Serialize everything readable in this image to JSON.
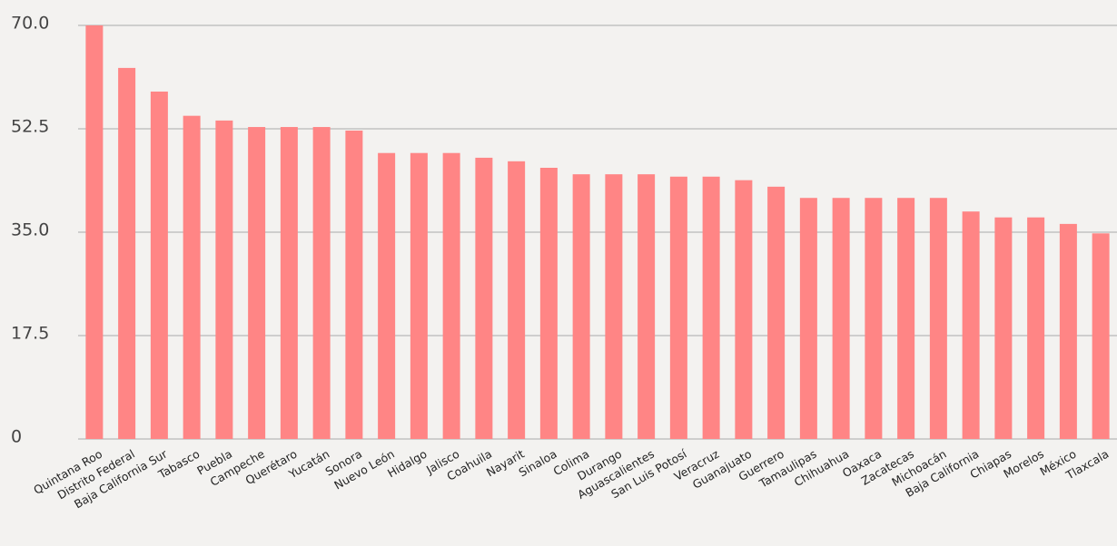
{
  "chart_data": {
    "type": "bar",
    "categories": [
      "Quintana Roo",
      "Distrito Federal",
      "Baja California Sur",
      "Tabasco",
      "Puebla",
      "Campeche",
      "Querétaro",
      "Yucatán",
      "Sonora",
      "Nuevo León",
      "Hidalgo",
      "Jalisco",
      "Coahuila",
      "Nayarit",
      "Sinaloa",
      "Colima",
      "Durango",
      "Aguascalientes",
      "San Luis Potosí",
      "Veracruz",
      "Guanajuato",
      "Guerrero",
      "Tamaulipas",
      "Chihuahua",
      "Oaxaca",
      "Zacatecas",
      "Michoacán",
      "Baja California",
      "Chiapas",
      "Morelos",
      "México",
      "Tlaxcala"
    ],
    "values": [
      70,
      62.8,
      58.8,
      54.7,
      53.9,
      52.8,
      52.8,
      52.8,
      52.2,
      48.4,
      48.4,
      48.4,
      47.6,
      47.0,
      45.9,
      44.8,
      44.8,
      44.8,
      44.4,
      44.4,
      43.8,
      42.7,
      40.8,
      40.8,
      40.8,
      40.8,
      40.8,
      38.5,
      37.5,
      37.5,
      36.4,
      34.8
    ],
    "color": "#ff8585",
    "ylim": [
      0,
      70
    ],
    "yticks": [
      0,
      17.5,
      {
        "value": 35,
        "label": "35.0"
      },
      52.5,
      {
        "value": 70,
        "label": "70.0"
      }
    ],
    "grid": true
  }
}
